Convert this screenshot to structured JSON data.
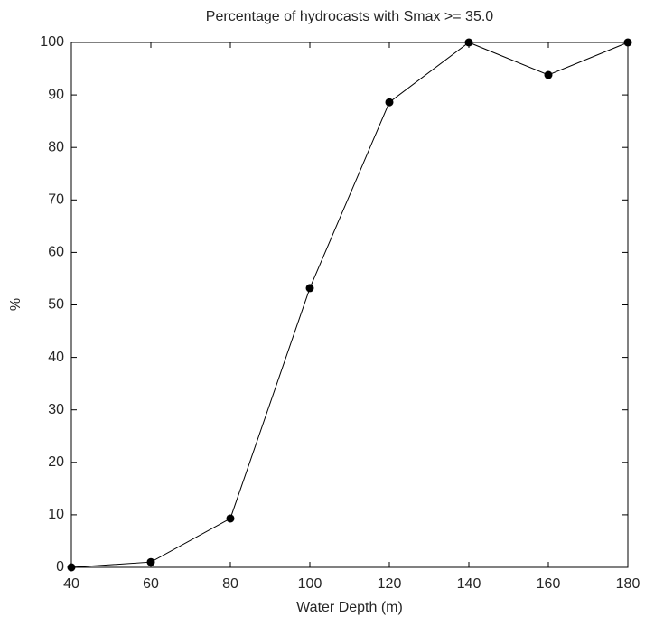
{
  "chart_data": {
    "type": "line",
    "title": "Percentage of hydrocasts with Smax >= 35.0",
    "x_label": "Water Depth (m)",
    "y_label": "%",
    "x": [
      40,
      60,
      80,
      100,
      120,
      140,
      160,
      180
    ],
    "values": [
      0,
      1.0,
      9.3,
      53.2,
      88.6,
      100,
      93.8,
      100
    ],
    "color": "#000000",
    "xlim": [
      40,
      180
    ],
    "xticks": [
      40,
      60,
      80,
      100,
      120,
      140,
      160,
      180
    ],
    "ylim": [
      0,
      100
    ],
    "yticks": [
      0,
      10,
      20,
      30,
      40,
      50,
      60,
      70,
      80,
      90,
      100
    ],
    "grid": false
  }
}
